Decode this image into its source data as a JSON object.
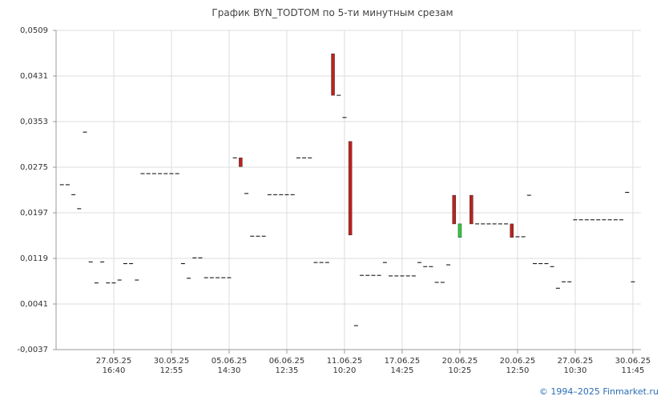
{
  "chart_data": {
    "type": "candlestick",
    "title": "График BYN_TODTOM по 5-ти минутным срезам",
    "x": [
      1,
      2,
      3,
      4,
      5,
      6,
      7,
      8,
      9,
      10,
      11,
      12,
      13,
      14,
      15,
      16,
      17,
      18,
      19,
      20,
      21,
      22,
      23,
      24,
      25,
      26,
      27,
      28,
      29,
      30,
      31,
      32,
      33,
      34,
      35,
      36,
      37,
      38,
      39,
      40,
      41,
      42,
      43,
      44,
      45,
      46,
      47,
      48,
      49,
      50,
      51,
      52,
      53,
      54,
      55,
      56,
      57,
      58,
      59,
      60,
      61,
      62,
      63,
      64,
      65,
      66,
      67,
      68,
      69,
      70,
      72,
      73,
      74,
      75,
      76,
      77,
      78,
      79,
      80,
      81,
      82,
      83,
      84,
      85,
      86,
      87,
      88,
      89,
      90,
      91,
      92,
      93,
      94,
      95,
      96,
      97,
      98,
      99,
      100
    ],
    "open": [
      0.0245,
      0.0245,
      0.0228,
      0.0204,
      0.0335,
      0.0113,
      0.0077,
      0.0113,
      0.0077,
      0.0077,
      0.0082,
      0.011,
      0.011,
      0.0082,
      0.0264,
      0.0264,
      0.0264,
      0.0264,
      0.0264,
      0.0264,
      0.0264,
      0.011,
      0.0085,
      0.012,
      0.012,
      0.0086,
      0.0086,
      0.0086,
      0.0086,
      0.0086,
      0.0291,
      0.0291,
      0.023,
      0.0157,
      0.0157,
      0.0157,
      0.0228,
      0.0228,
      0.0228,
      0.0228,
      0.0228,
      0.0291,
      0.0291,
      0.0291,
      0.0112,
      0.0112,
      0.0112,
      0.0469,
      0.0398,
      0.036,
      0.0319,
      0.0004,
      0.009,
      0.009,
      0.009,
      0.009,
      0.0112,
      0.0089,
      0.0089,
      0.0089,
      0.0089,
      0.0089,
      0.0112,
      0.0105,
      0.0105,
      0.0078,
      0.0078,
      0.0108,
      0.0227,
      0.0155,
      0.0227,
      0.0178,
      0.0178,
      0.0178,
      0.0178,
      0.0178,
      0.0178,
      0.0178,
      0.0156,
      0.0156,
      0.0227,
      0.011,
      0.011,
      0.011,
      0.0105,
      0.0068,
      0.0079,
      0.0079,
      0.0185,
      0.0185,
      0.0185,
      0.0185,
      0.0185,
      0.0185,
      0.0185,
      0.0185,
      0.0185,
      0.0232,
      0.0079
    ],
    "close": [
      0.0245,
      0.0245,
      0.0228,
      0.0204,
      0.0335,
      0.0113,
      0.0077,
      0.0113,
      0.0077,
      0.0077,
      0.0082,
      0.011,
      0.011,
      0.0082,
      0.0264,
      0.0264,
      0.0264,
      0.0264,
      0.0264,
      0.0264,
      0.0264,
      0.011,
      0.0085,
      0.012,
      0.012,
      0.0086,
      0.0086,
      0.0086,
      0.0086,
      0.0086,
      0.0291,
      0.0276,
      0.023,
      0.0157,
      0.0157,
      0.0157,
      0.0228,
      0.0228,
      0.0228,
      0.0228,
      0.0228,
      0.0291,
      0.0291,
      0.0291,
      0.0112,
      0.0112,
      0.0112,
      0.0398,
      0.0398,
      0.036,
      0.0159,
      0.0004,
      0.009,
      0.009,
      0.009,
      0.009,
      0.0112,
      0.0089,
      0.0089,
      0.0089,
      0.0089,
      0.0089,
      0.0112,
      0.0105,
      0.0105,
      0.0078,
      0.0078,
      0.0108,
      0.0178,
      0.0178,
      0.0178,
      0.0178,
      0.0178,
      0.0178,
      0.0178,
      0.0178,
      0.0178,
      0.0155,
      0.0156,
      0.0156,
      0.0227,
      0.011,
      0.011,
      0.011,
      0.0105,
      0.0068,
      0.0079,
      0.0079,
      0.0185,
      0.0185,
      0.0185,
      0.0185,
      0.0185,
      0.0185,
      0.0185,
      0.0185,
      0.0185,
      0.0232,
      0.0079
    ],
    "up_color": "#2ecc40",
    "down_color": "#c0201c",
    "flat_color": "#000000",
    "xlim": [
      0,
      101.4
    ],
    "xticks": [
      {
        "value": 10,
        "label": [
          "27.05.25",
          "16:40"
        ]
      },
      {
        "value": 20,
        "label": [
          "30.05.25",
          "12:55"
        ]
      },
      {
        "value": 30,
        "label": [
          "05.06.25",
          "14:30"
        ]
      },
      {
        "value": 40,
        "label": [
          "06.06.25",
          "12:35"
        ]
      },
      {
        "value": 50,
        "label": [
          "11.06.25",
          "10:20"
        ]
      },
      {
        "value": 60,
        "label": [
          "17.06.25",
          "14:25"
        ]
      },
      {
        "value": 70,
        "label": [
          "20.06.25",
          "10:25"
        ]
      },
      {
        "value": 80,
        "label": [
          "20.06.25",
          "12:50"
        ]
      },
      {
        "value": 90,
        "label": [
          "27.06.25",
          "10:30"
        ]
      },
      {
        "value": 100,
        "label": [
          "30.06.25",
          "11:45"
        ]
      }
    ],
    "ylim": [
      -0.0037,
      0.0509
    ],
    "yticks": [
      {
        "value": -0.0037,
        "label": "-0,0037"
      },
      {
        "value": 0.0041,
        "label": "0,0041"
      },
      {
        "value": 0.0119,
        "label": "0,0119"
      },
      {
        "value": 0.0197,
        "label": "0,0197"
      },
      {
        "value": 0.0275,
        "label": "0,0275"
      },
      {
        "value": 0.0353,
        "label": "0,0353"
      },
      {
        "value": 0.0431,
        "label": "0,0431"
      },
      {
        "value": 0.0509,
        "label": "0,0509"
      }
    ],
    "grid": true
  },
  "footer": "© 1994–2025 Finmarket.ru"
}
